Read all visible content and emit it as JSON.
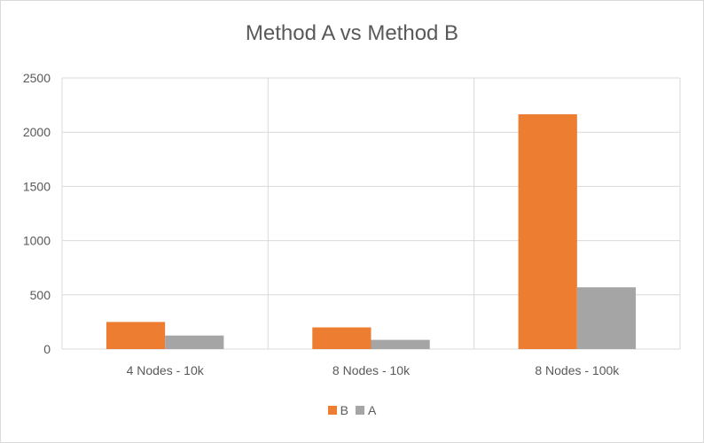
{
  "chart_data": {
    "type": "bar",
    "title": "Method A vs Method B",
    "xlabel": "",
    "ylabel": "",
    "categories": [
      "4 Nodes - 10k",
      "8 Nodes - 10k",
      "8 Nodes - 100k"
    ],
    "series": [
      {
        "name": "B",
        "color": "#ed7d31",
        "values": [
          250,
          200,
          2165
        ]
      },
      {
        "name": "A",
        "color": "#a5a5a5",
        "values": [
          125,
          85,
          570
        ]
      }
    ],
    "ylim": [
      0,
      2500
    ],
    "yticks": [
      0,
      500,
      1000,
      1500,
      2000,
      2500
    ],
    "grid": true,
    "legend_position": "bottom"
  }
}
